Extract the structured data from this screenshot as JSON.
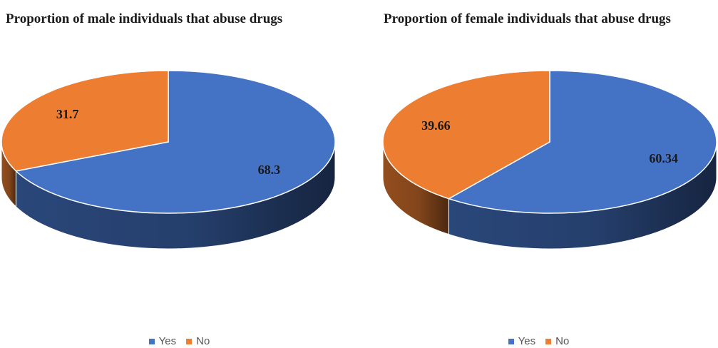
{
  "chart_data": [
    {
      "type": "pie",
      "title": "Proportion of male individuals that abuse drugs",
      "categories": [
        "Yes",
        "No"
      ],
      "values": [
        68.3,
        31.7
      ],
      "labels": [
        "68.3",
        "31.7"
      ],
      "colors": [
        "#4472C4",
        "#ED7D31"
      ],
      "legend_position": "bottom"
    },
    {
      "type": "pie",
      "title": "Proportion of female individuals that abuse drugs",
      "categories": [
        "Yes",
        "No"
      ],
      "values": [
        60.34,
        39.66
      ],
      "labels": [
        "60.34",
        "39.66"
      ],
      "colors": [
        "#4472C4",
        "#ED7D31"
      ],
      "legend_position": "bottom"
    }
  ]
}
